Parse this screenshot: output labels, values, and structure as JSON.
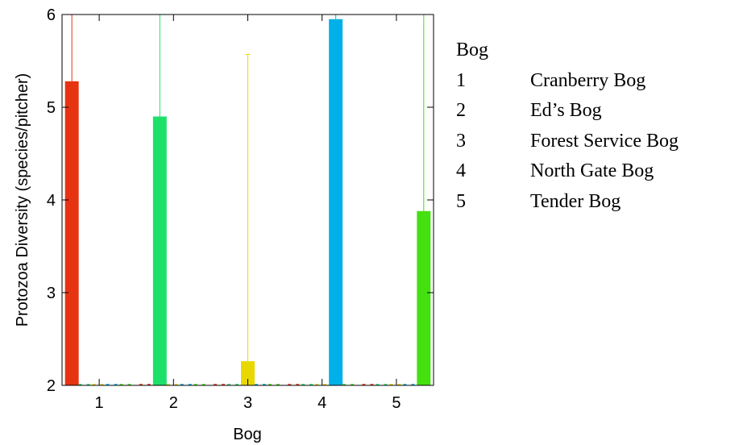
{
  "chart_data": {
    "type": "bar",
    "xlabel": "Bog",
    "ylabel": "Protozoa Diversity (species/pitcher)",
    "ylim": [
      2,
      6
    ],
    "yticks": [
      "2",
      "3",
      "4",
      "5",
      "6"
    ],
    "categories": [
      "1",
      "2",
      "3",
      "4",
      "5"
    ],
    "series": [
      {
        "group": "1",
        "color": "#e63312",
        "values": [
          5.28,
          2,
          2,
          2,
          2
        ],
        "error_upper": [
          6.0,
          null,
          null,
          null,
          null
        ]
      },
      {
        "group": "2",
        "color": "#1de06a",
        "values": [
          2,
          4.9,
          2,
          2,
          2
        ],
        "error_upper": [
          null,
          6.0,
          null,
          null,
          null
        ]
      },
      {
        "group": "3",
        "color": "#e8d800",
        "values": [
          2,
          2,
          2.26,
          2,
          2
        ],
        "error_upper": [
          null,
          null,
          5.57,
          null,
          null
        ]
      },
      {
        "group": "4",
        "color": "#00b0e8",
        "values": [
          2,
          2,
          2,
          5.95,
          2
        ],
        "error_upper": [
          null,
          null,
          null,
          6.0,
          null
        ]
      },
      {
        "group": "5",
        "color": "#44e010",
        "values": [
          2,
          2,
          2,
          2,
          3.88
        ],
        "error_upper": [
          null,
          null,
          null,
          null,
          6.0
        ]
      }
    ],
    "grid": false,
    "legend_position": "right"
  },
  "legend": {
    "title": "Bog",
    "items": [
      {
        "number": "1",
        "label": "Cranberry Bog"
      },
      {
        "number": "2",
        "label": "Ed’s Bog"
      },
      {
        "number": "3",
        "label": "Forest Service Bog"
      },
      {
        "number": "4",
        "label": "North Gate Bog"
      },
      {
        "number": "5",
        "label": "Tender Bog"
      }
    ]
  }
}
